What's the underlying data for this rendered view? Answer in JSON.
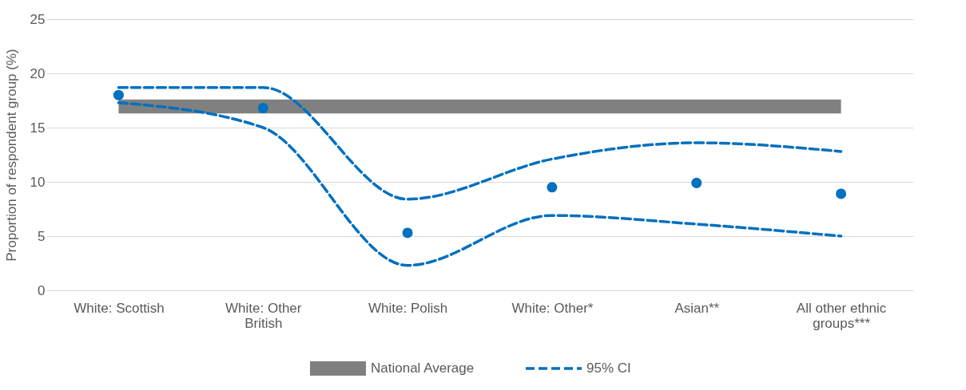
{
  "chart_data": {
    "type": "scatter",
    "ylabel": "Proportion of respondent group (%)",
    "categories": [
      "White: Scottish",
      "White: Other British",
      "White: Polish",
      "White: Other*",
      "Asian**",
      "All other ethnic groups***"
    ],
    "series": [
      {
        "color": "#0070c0",
        "marker": "circle",
        "values": [
          18.0,
          16.8,
          5.3,
          9.5,
          9.9,
          8.9
        ]
      },
      {
        "type": "line",
        "name": "95% CI",
        "color": "#0070c0",
        "line_style": "dashed",
        "marker": "none",
        "values": [
          18.7,
          18.7,
          8.4,
          12.1,
          13.6,
          12.8
        ]
      },
      {
        "type": "line",
        "color": "#0070c0",
        "line_style": "dashed",
        "marker": "none",
        "values": [
          17.3,
          15.0,
          2.3,
          6.9,
          6.1,
          5.0
        ]
      }
    ],
    "bands": [
      {
        "axis": "y",
        "from": 16.3,
        "to": 17.6,
        "label": "National Average",
        "color": "#808080"
      }
    ],
    "ylim": [
      0,
      25
    ],
    "yticks": [
      0,
      5,
      10,
      15,
      20,
      25
    ],
    "grid": "y",
    "legend": "bottom"
  }
}
